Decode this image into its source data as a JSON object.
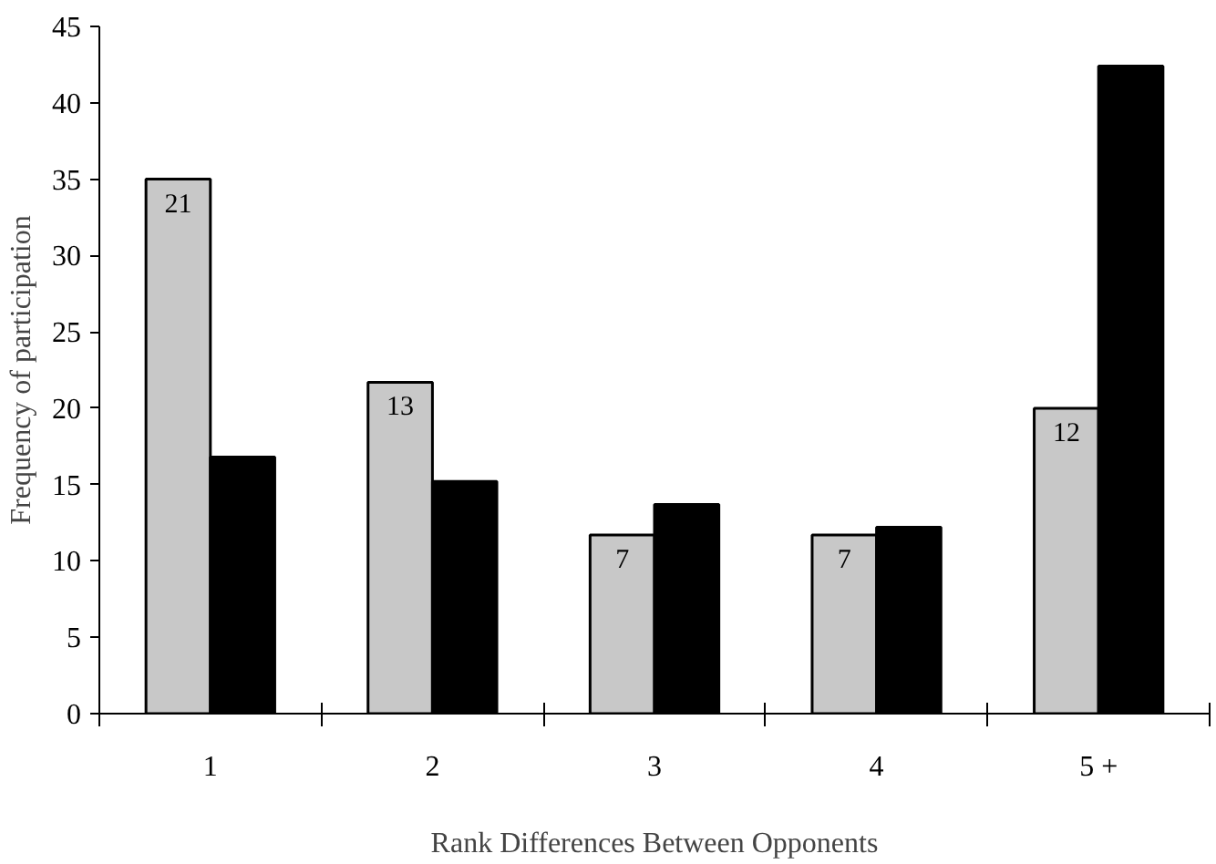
{
  "chart_data": {
    "type": "bar",
    "xlabel": "Rank Differences Between Opponents",
    "ylabel": "Frequency of participation",
    "categories": [
      "1",
      "2",
      "3",
      "4",
      "5 +"
    ],
    "series": [
      {
        "color": "#c8c8c8",
        "values": [
          35.0,
          21.7,
          11.7,
          11.7,
          20.0
        ]
      },
      {
        "color": "#000000",
        "values": [
          16.8,
          15.2,
          13.7,
          12.2,
          42.4
        ]
      }
    ],
    "annotations": [
      {
        "text": "21",
        "x": "1",
        "y": 35.0
      },
      {
        "text": "13",
        "x": "2",
        "y": 21.7
      },
      {
        "text": "7",
        "x": "3",
        "y": 11.7
      },
      {
        "text": "7",
        "x": "4",
        "y": 11.7
      },
      {
        "text": "12",
        "x": "5 +",
        "y": 20.0
      }
    ],
    "ylim": [
      0,
      45
    ],
    "yticks": [
      0,
      5,
      10,
      15,
      20,
      25,
      30,
      35,
      40,
      45
    ],
    "grid": false
  }
}
